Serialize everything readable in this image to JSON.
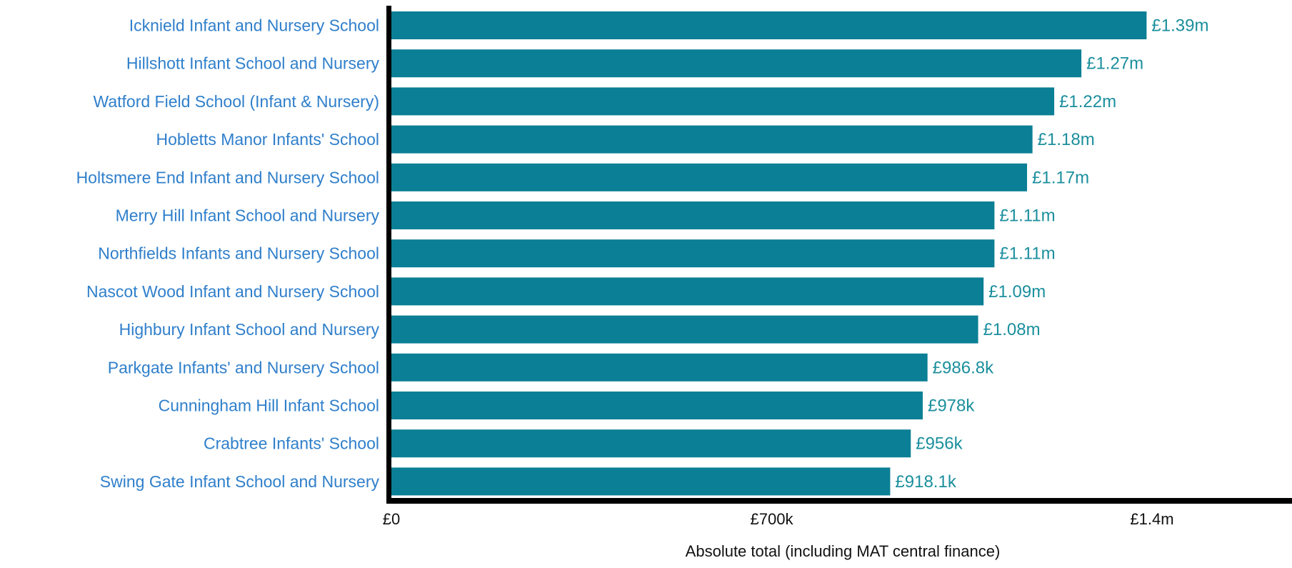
{
  "chart_data": {
    "type": "bar",
    "orientation": "horizontal",
    "title": "",
    "xlabel": "Absolute total (including MAT central finance)",
    "ylabel": "",
    "xlim": [
      0,
      1750000
    ],
    "grid": false,
    "legend": "none",
    "categories": [
      "Icknield Infant and Nursery School",
      "Hillshott Infant School and Nursery",
      "Watford Field School (Infant & Nursery)",
      "Hobletts Manor Infants' School",
      "Holtsmere End Infant and Nursery School",
      "Merry Hill Infant School and Nursery",
      "Northfields Infants and Nursery School",
      "Nascot Wood Infant and Nursery School",
      "Highbury Infant School and Nursery",
      "Parkgate Infants' and Nursery School",
      "Cunningham Hill Infant School",
      "Crabtree Infants' School",
      "Swing Gate Infant School and Nursery"
    ],
    "values": [
      1390000,
      1270000,
      1220000,
      1180000,
      1170000,
      1110000,
      1110000,
      1090000,
      1080000,
      986800,
      978000,
      956000,
      918100
    ],
    "data_labels": [
      "£1.39m",
      "£1.27m",
      "£1.22m",
      "£1.18m",
      "£1.17m",
      "£1.11m",
      "£1.11m",
      "£1.09m",
      "£1.08m",
      "£986.8k",
      "£978k",
      "£956k",
      "£918.1k"
    ],
    "x_ticks": [
      {
        "value": 0,
        "label": "£0"
      },
      {
        "value": 700000,
        "label": "£700k"
      },
      {
        "value": 1400000,
        "label": "£1.4m"
      }
    ]
  },
  "colors": {
    "bar": "#0b7f95",
    "category_label": "#2f7fcb",
    "data_label": "#1b8f9d",
    "axis": "#000000"
  }
}
